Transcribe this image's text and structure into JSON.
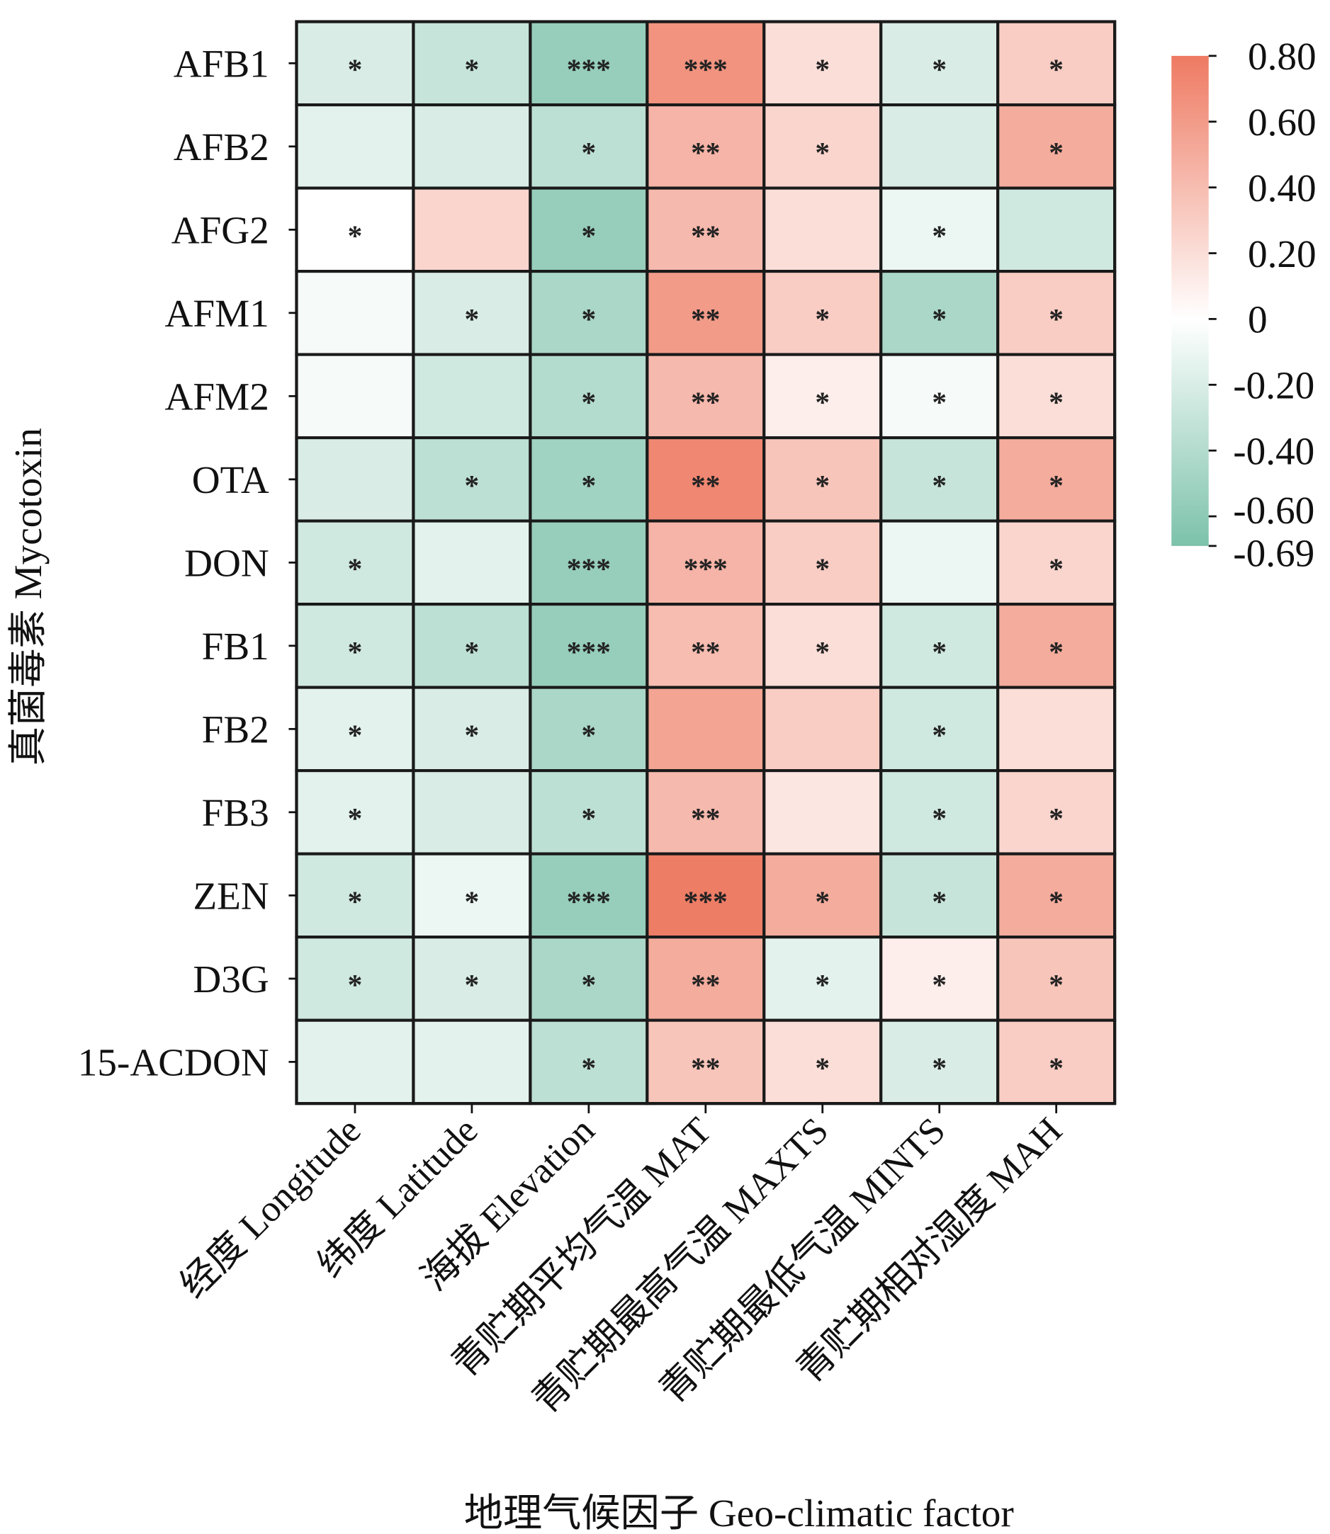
{
  "chart_data": {
    "type": "heatmap",
    "title": "",
    "xlabel": "地理气候因子 Geo-climatic factor",
    "ylabel": "真菌毒素 Mycotoxin",
    "x_categories": [
      "经度 Longitude",
      "纬度 Latitude",
      "海拔 Elevation",
      "青贮期平均气温 MAT",
      "青贮期最高气温 MAXTS",
      "青贮期最低气温 MINTS",
      "青贮期相对湿度 MAH"
    ],
    "y_categories": [
      "AFB1",
      "AFB2",
      "AFG2",
      "AFM1",
      "AFM2",
      "OTA",
      "DON",
      "FB1",
      "FB2",
      "FB3",
      "ZEN",
      "D3G",
      "15-ACDON"
    ],
    "values": [
      [
        -0.2,
        -0.3,
        -0.55,
        0.65,
        0.2,
        -0.2,
        0.3
      ],
      [
        -0.15,
        -0.2,
        -0.35,
        0.45,
        0.25,
        -0.2,
        0.5
      ],
      [
        0.0,
        0.25,
        -0.55,
        0.42,
        0.2,
        -0.1,
        -0.25
      ],
      [
        -0.05,
        -0.2,
        -0.45,
        0.6,
        0.3,
        -0.45,
        0.3
      ],
      [
        -0.05,
        -0.25,
        -0.4,
        0.42,
        0.1,
        -0.05,
        0.2
      ],
      [
        -0.2,
        -0.35,
        -0.5,
        0.72,
        0.35,
        -0.3,
        0.5
      ],
      [
        -0.25,
        -0.15,
        -0.55,
        0.45,
        0.3,
        -0.1,
        0.25
      ],
      [
        -0.25,
        -0.35,
        -0.55,
        0.4,
        0.2,
        -0.25,
        0.5
      ],
      [
        -0.15,
        -0.2,
        -0.45,
        0.55,
        0.3,
        -0.25,
        0.2
      ],
      [
        -0.15,
        -0.2,
        -0.35,
        0.42,
        0.15,
        -0.25,
        0.25
      ],
      [
        -0.25,
        -0.1,
        -0.55,
        0.78,
        0.5,
        -0.3,
        0.5
      ],
      [
        -0.25,
        -0.2,
        -0.45,
        0.5,
        -0.15,
        0.1,
        0.35
      ],
      [
        -0.15,
        -0.15,
        -0.35,
        0.35,
        0.2,
        -0.2,
        0.3
      ]
    ],
    "significance": [
      [
        "*",
        "*",
        "***",
        "***",
        "*",
        "*",
        "*"
      ],
      [
        "",
        "",
        "*",
        "**",
        "*",
        "",
        "*"
      ],
      [
        "*",
        "",
        "*",
        "**",
        "",
        "*",
        ""
      ],
      [
        "",
        "*",
        "*",
        "**",
        "*",
        "*",
        "*"
      ],
      [
        "",
        "",
        "*",
        "**",
        "*",
        "*",
        "*"
      ],
      [
        "",
        "*",
        "*",
        "**",
        "*",
        "*",
        "*"
      ],
      [
        "*",
        "",
        "***",
        "***",
        "*",
        "",
        "*"
      ],
      [
        "*",
        "*",
        "***",
        "**",
        "*",
        "*",
        "*"
      ],
      [
        "*",
        "*",
        "*",
        "",
        "",
        "*",
        ""
      ],
      [
        "*",
        "",
        "*",
        "**",
        "",
        "*",
        "*"
      ],
      [
        "*",
        "*",
        "***",
        "***",
        "*",
        "*",
        "*"
      ],
      [
        "*",
        "*",
        "*",
        "**",
        "*",
        "*",
        "*"
      ],
      [
        "",
        "",
        "*",
        "**",
        "*",
        "*",
        "*"
      ]
    ],
    "colorbar": {
      "range": [
        -0.69,
        0.8
      ],
      "ticks": [
        0.8,
        0.6,
        0.4,
        0.2,
        0,
        -0.2,
        -0.4,
        -0.6,
        -0.69
      ],
      "tick_labels": [
        "0.80",
        "0.60",
        "0.40",
        "0.20",
        "0",
        "-0.20",
        "-0.40",
        "-0.60",
        "-0.69"
      ],
      "low_color": "#7cc2aa",
      "mid_color": "#ffffff",
      "high_color": "#ee7a62"
    },
    "legend_placement": "right"
  }
}
